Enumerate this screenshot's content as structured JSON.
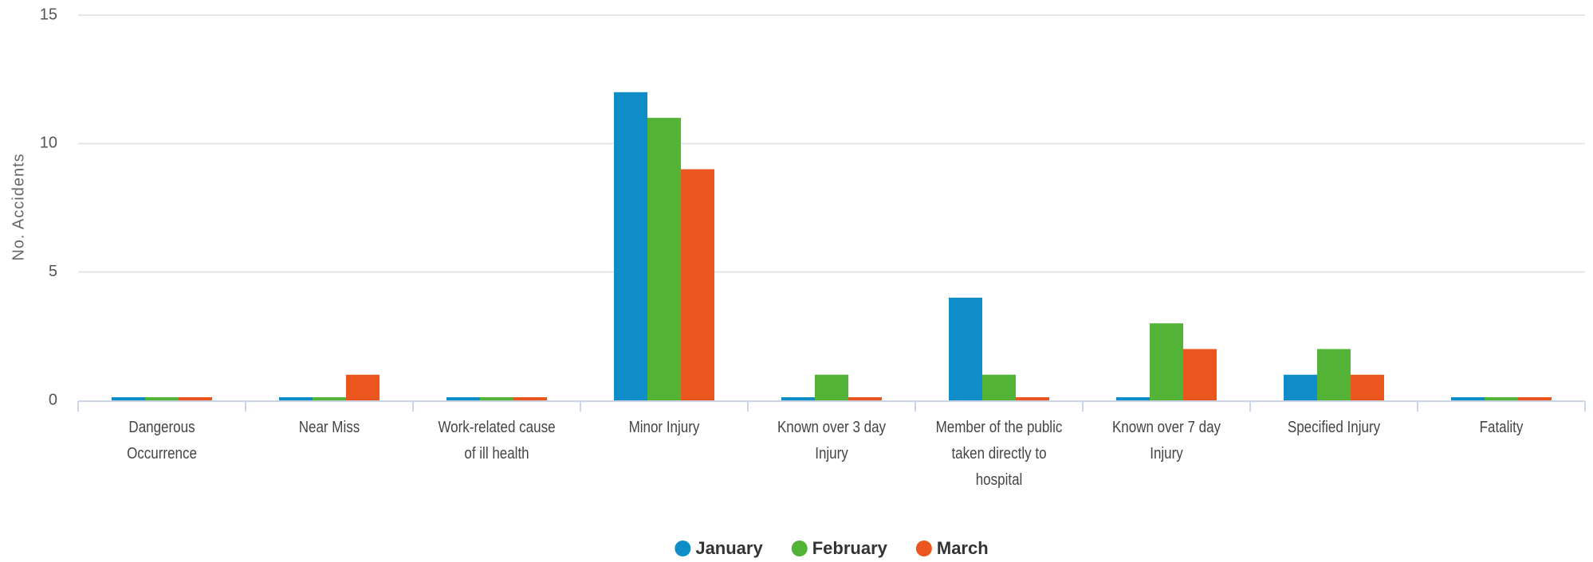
{
  "chart_data": {
    "type": "bar",
    "y_axis_label": "No. Accidents",
    "categories": [
      "Dangerous Occurrence",
      "Near Miss",
      "Work-related cause of ill health",
      "Minor Injury",
      "Known over 3 day Injury",
      "Member of the public taken directly to hospital",
      "Known over 7 day Injury",
      "Specified Injury",
      "Fatality"
    ],
    "series": [
      {
        "name": "January",
        "color": "#0e8dc8",
        "values": [
          0,
          0,
          0,
          12,
          0,
          4,
          0,
          1,
          0
        ]
      },
      {
        "name": "February",
        "color": "#52b336",
        "values": [
          0,
          0,
          0,
          11,
          1,
          1,
          3,
          2,
          0
        ]
      },
      {
        "name": "March",
        "color": "#ea561e",
        "values": [
          0,
          1,
          0,
          9,
          0,
          0,
          2,
          1,
          0
        ]
      }
    ],
    "ylim": [
      0,
      15
    ],
    "yticks": [
      0,
      5,
      10,
      15
    ],
    "grid": true,
    "legend": "bottom"
  }
}
